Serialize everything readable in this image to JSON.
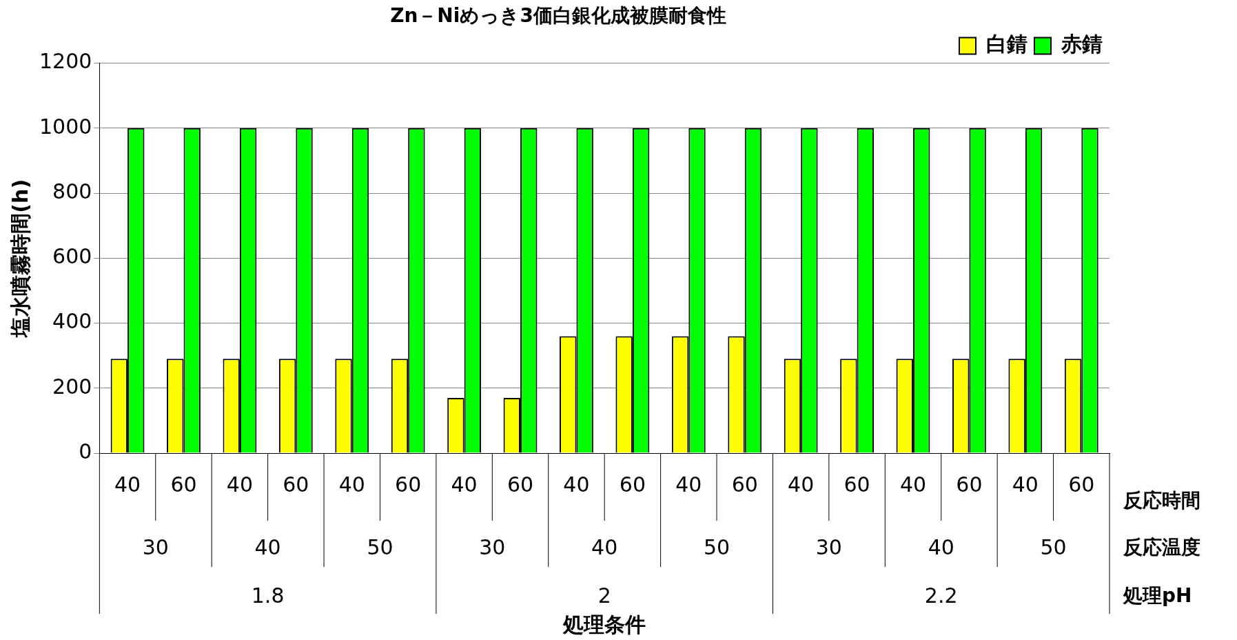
{
  "chart_data": {
    "type": "bar",
    "title": "Zn－Niめっき3価白銀化成被膜耐食性",
    "ylabel": "塩水噴霧時間(h)",
    "categories": [
      "40",
      "60",
      "40",
      "60",
      "40",
      "60",
      "40",
      "60",
      "40",
      "60",
      "40",
      "60",
      "40",
      "60",
      "40",
      "60",
      "40",
      "60"
    ],
    "series": [
      {
        "name": "白錆",
        "color": "#ffff00",
        "values": [
          290,
          290,
          290,
          290,
          290,
          290,
          170,
          170,
          360,
          360,
          360,
          360,
          290,
          290,
          290,
          290,
          290,
          290
        ]
      },
      {
        "name": "赤錆",
        "color": "#00ff00",
        "values": [
          1000,
          1000,
          1000,
          1000,
          1000,
          1000,
          1000,
          1000,
          1000,
          1000,
          1000,
          1000,
          1000,
          1000,
          1000,
          1000,
          1000,
          1000
        ]
      }
    ],
    "annotations": [
      "30",
      "40",
      "50",
      "30",
      "40",
      "50",
      "30",
      "40",
      "50",
      "1.8",
      "2",
      "2.2",
      "反応時間",
      "反応温度",
      "処理pH",
      "処理条件"
    ],
    "ylim": [
      0,
      1200
    ],
    "yticks": [
      0,
      200,
      400,
      600,
      800,
      1000,
      1200
    ],
    "grid": "y",
    "legend": "top right"
  }
}
